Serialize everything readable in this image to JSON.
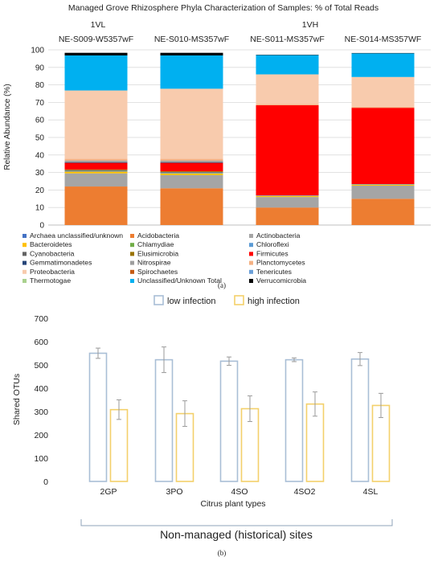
{
  "chart_data": [
    {
      "type": "bar",
      "stacked": true,
      "title": "Managed Grove Rhizosphere Phyla Characterization of Samples: % of Total Reads",
      "group_labels": [
        "1VL",
        "1VH"
      ],
      "categories": [
        "NE-S009-W5357wF",
        "NE-S010-MS357wF",
        "NE-S011-MS357wF",
        "NE-S014-MS357WF"
      ],
      "ylabel": "Relative Abundance (%)",
      "ylim": [
        0,
        100
      ],
      "yticks": [
        0,
        10,
        20,
        30,
        40,
        50,
        60,
        70,
        80,
        90,
        100
      ],
      "grid": true,
      "legend_position": "bottom",
      "series": [
        {
          "name": "Archaea unclassified/unknown",
          "color": "#4472c4",
          "values": [
            0,
            0,
            0,
            0
          ]
        },
        {
          "name": "Acidobacteria",
          "color": "#ed7d31",
          "values": [
            22,
            21,
            10,
            15
          ]
        },
        {
          "name": "Actinobacteria",
          "color": "#a5a5a5",
          "values": [
            7.5,
            7.5,
            6,
            7.5
          ]
        },
        {
          "name": "Bacteroidetes",
          "color": "#ffc000",
          "values": [
            1,
            1,
            0.6,
            0.6
          ]
        },
        {
          "name": "Chlamydiae",
          "color": "#70ad47",
          "values": [
            0,
            0,
            0,
            0
          ]
        },
        {
          "name": "Chloroflexi",
          "color": "#5b9bd5",
          "values": [
            0.4,
            0.4,
            0.3,
            0.3
          ]
        },
        {
          "name": "Cyanobacteria",
          "color": "#636363",
          "values": [
            0.4,
            0.4,
            0,
            0
          ]
        },
        {
          "name": "Elusimicrobia",
          "color": "#997300",
          "values": [
            0.4,
            0.4,
            0,
            0
          ]
        },
        {
          "name": "Firmicutes",
          "color": "#ff0000",
          "values": [
            3.8,
            4.8,
            51.5,
            43.5
          ]
        },
        {
          "name": "Gemmatimonadetes",
          "color": "#264478",
          "values": [
            0.3,
            0.3,
            0,
            0
          ]
        },
        {
          "name": "Nitrospirae",
          "color": "#9e9e9e",
          "values": [
            1,
            1,
            0,
            0
          ]
        },
        {
          "name": "Planctomycetes",
          "color": "#f4b183",
          "values": [
            1,
            1,
            0.6,
            0.6
          ]
        },
        {
          "name": "Proteobacteria",
          "color": "#f8cbad",
          "values": [
            39,
            40,
            17,
            17
          ]
        },
        {
          "name": "Spirochaetes",
          "color": "#c55a11",
          "values": [
            0,
            0,
            0,
            0
          ]
        },
        {
          "name": "Tenericutes",
          "color": "#6a9fd8",
          "values": [
            0,
            0,
            0,
            0
          ]
        },
        {
          "name": "Thermotogae",
          "color": "#a9d18e",
          "values": [
            0,
            0,
            0,
            0
          ]
        },
        {
          "name": "Unclassified/Unknown Total",
          "color": "#00b0f0",
          "values": [
            20,
            19,
            11,
            13.5
          ]
        },
        {
          "name": "Verrucomicrobia",
          "color": "#000000",
          "values": [
            1.5,
            1.5,
            0.2,
            0.2
          ]
        }
      ],
      "caption": "(a)"
    },
    {
      "type": "bar",
      "categories": [
        "2GP",
        "3PO",
        "4SO",
        "4SO2",
        "4SL"
      ],
      "xlabel": "Citrus plant types",
      "ylabel": "Shared OTUs",
      "ylim": [
        0,
        700
      ],
      "yticks": [
        0,
        100,
        200,
        300,
        400,
        500,
        600,
        700
      ],
      "legend_position": "top",
      "series": [
        {
          "name": "low infection",
          "color": "#a9bed6",
          "values": [
            550,
            522,
            516,
            522,
            525
          ],
          "errors": [
            22,
            55,
            18,
            8,
            28
          ]
        },
        {
          "name": "high infection",
          "color": "#f3d06b",
          "values": [
            308,
            291,
            312,
            332,
            326
          ],
          "errors": [
            42,
            55,
            55,
            52,
            52
          ]
        }
      ],
      "group_label": "Non-managed (historical) sites",
      "caption": "(b)"
    }
  ]
}
